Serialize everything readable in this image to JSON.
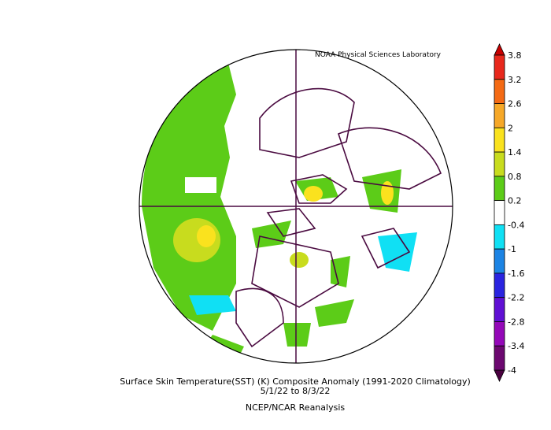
{
  "credit": "NOAA Physical Sciences Laboratory",
  "caption": {
    "title": "Surface Skin Temperature(SST) (K) Composite Anomaly (1991-2020 Climatology)",
    "dates": "5/1/22   to 8/3/22",
    "source": "NCEP/NCAR Reanalysis"
  },
  "colorbar": {
    "labels": [
      "3.8",
      "3.2",
      "2.6",
      "2",
      "1.4",
      "0.8",
      "0.2",
      "-0.4",
      "-1",
      "-1.6",
      "-2.2",
      "-2.8",
      "-3.4",
      "-4"
    ],
    "colors": [
      "#e8281c",
      "#f46a14",
      "#f6a828",
      "#fae21e",
      "#c8dc1e",
      "#5ccc18",
      "#ffffff",
      "#10e0f4",
      "#1c84e4",
      "#2a24e0",
      "#6010d4",
      "#9408b8",
      "#6c0870"
    ],
    "top_color": "#c80000",
    "bottom_color": "#4a0040"
  }
}
